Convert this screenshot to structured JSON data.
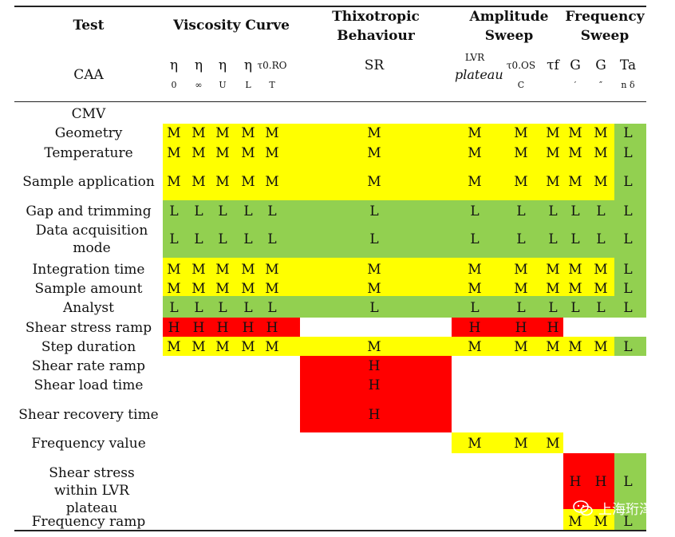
{
  "header": {
    "test_label": "Test",
    "caa_label": "CAA",
    "groups": {
      "viscosity": "Viscosity Curve",
      "thixotropic": "Thixotropic Behaviour",
      "amplitude": "Amplitude Sweep",
      "frequency": "Frequency Sweep"
    },
    "params": [
      {
        "main": "η",
        "sub": "0"
      },
      {
        "main": "η",
        "sub": "∞"
      },
      {
        "main": "η",
        "sub": "U"
      },
      {
        "main": "η",
        "sub": "L"
      },
      {
        "main": "τ0.RO",
        "sub": "T"
      },
      {
        "main": "SR",
        "sub": ""
      },
      {
        "main": "LVR",
        "sub": "plateau"
      },
      {
        "main": "τ0.OS",
        "sub": "C"
      },
      {
        "main": "τf",
        "sub": ""
      },
      {
        "main": "G",
        "sub": "′"
      },
      {
        "main": "G",
        "sub": "″"
      },
      {
        "main": "Ta",
        "sub": "n δ"
      }
    ]
  },
  "cmv_label": "CMV",
  "rows": [
    {
      "label": "Geometry",
      "values": [
        "M",
        "M",
        "M",
        "M",
        "M",
        "M",
        "M",
        "M",
        "M",
        "M",
        "M",
        "L"
      ]
    },
    {
      "label": "Temperature",
      "values": [
        "M",
        "M",
        "M",
        "M",
        "M",
        "M",
        "M",
        "M",
        "M",
        "M",
        "M",
        "L"
      ]
    },
    {
      "label": "Sample application",
      "values": [
        "M",
        "M",
        "M",
        "M",
        "M",
        "M",
        "M",
        "M",
        "M",
        "M",
        "M",
        "L"
      ]
    },
    {
      "label": "Gap and trimming",
      "values": [
        "L",
        "L",
        "L",
        "L",
        "L",
        "L",
        "L",
        "L",
        "L",
        "L",
        "L",
        "L"
      ]
    },
    {
      "label": "Data acquisition mode",
      "values": [
        "L",
        "L",
        "L",
        "L",
        "L",
        "L",
        "L",
        "L",
        "L",
        "L",
        "L",
        "L"
      ]
    },
    {
      "label": "Integration time",
      "values": [
        "M",
        "M",
        "M",
        "M",
        "M",
        "M",
        "M",
        "M",
        "M",
        "M",
        "M",
        "L"
      ]
    },
    {
      "label": "Sample amount",
      "values": [
        "M",
        "M",
        "M",
        "M",
        "M",
        "M",
        "M",
        "M",
        "M",
        "M",
        "M",
        "L"
      ]
    },
    {
      "label": "Analyst",
      "values": [
        "L",
        "L",
        "L",
        "L",
        "L",
        "L",
        "L",
        "L",
        "L",
        "L",
        "L",
        "L"
      ]
    },
    {
      "label": "Shear stress ramp",
      "values": [
        "H",
        "H",
        "H",
        "H",
        "H",
        "",
        "H",
        "H",
        "H",
        "",
        "",
        ""
      ]
    },
    {
      "label": "Step duration",
      "values": [
        "M",
        "M",
        "M",
        "M",
        "M",
        "M",
        "M",
        "M",
        "M",
        "M",
        "M",
        "L"
      ]
    },
    {
      "label": "Shear rate ramp",
      "values": [
        "",
        "",
        "",
        "",
        "",
        "H",
        "",
        "",
        "",
        "",
        "",
        ""
      ]
    },
    {
      "label": "Shear load time",
      "values": [
        "",
        "",
        "",
        "",
        "",
        "H",
        "",
        "",
        "",
        "",
        "",
        ""
      ]
    },
    {
      "label": "Shear recovery time",
      "values": [
        "",
        "",
        "",
        "",
        "",
        "H",
        "",
        "",
        "",
        "",
        "",
        ""
      ]
    },
    {
      "label": "Frequency value",
      "values": [
        "",
        "",
        "",
        "",
        "",
        "",
        "M",
        "M",
        "M",
        "",
        "",
        ""
      ]
    },
    {
      "label": "Shear stress within LVR plateau",
      "values": [
        "",
        "",
        "",
        "",
        "",
        "",
        "",
        "",
        "",
        "H",
        "H",
        "L"
      ]
    },
    {
      "label": "Frequency ramp",
      "values": [
        "",
        "",
        "",
        "",
        "",
        "",
        "",
        "",
        "",
        "M",
        "M",
        "L"
      ]
    }
  ],
  "watermark": "上海珩泽",
  "colors": {
    "M": "#ffff00",
    "L": "#92d050",
    "H": "#ff0000"
  }
}
